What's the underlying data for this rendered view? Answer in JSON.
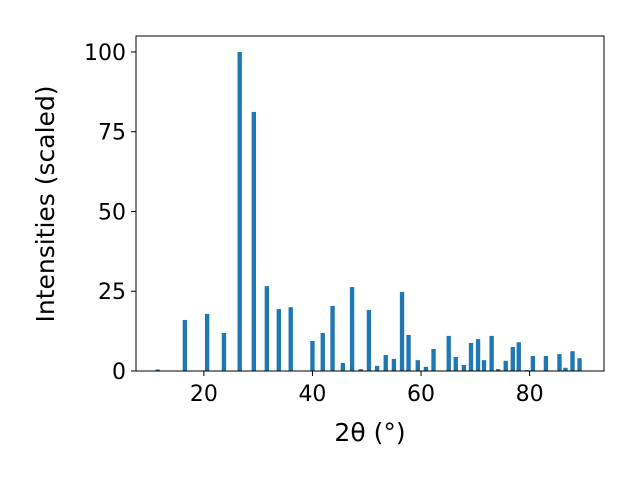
{
  "chart_data": {
    "type": "bar",
    "xlabel": "2θ (°)",
    "ylabel": "Intensities (scaled)",
    "color": "#1f77b4",
    "bar_width": 0.8,
    "x": [
      11.5,
      16.5,
      20.6,
      23.7,
      26.6,
      29.2,
      31.6,
      33.8,
      36.0,
      40.0,
      41.9,
      43.7,
      45.6,
      47.3,
      48.9,
      50.4,
      51.9,
      53.5,
      55.0,
      56.5,
      57.7,
      59.4,
      60.9,
      62.3,
      65.1,
      66.4,
      67.9,
      69.2,
      70.5,
      71.6,
      73.0,
      74.2,
      75.6,
      76.9,
      78.0,
      79.5,
      80.6,
      83.0,
      85.5,
      86.6,
      87.9,
      89.2
    ],
    "values": [
      0.5,
      16,
      17.9,
      11.9,
      100,
      81.2,
      26.6,
      19.4,
      20,
      9.4,
      11.9,
      20.4,
      2.5,
      26.3,
      0.6,
      19.1,
      1.6,
      5,
      3.8,
      24.8,
      11.3,
      3.4,
      1.3,
      6.9,
      11,
      4.4,
      1.9,
      8.8,
      10,
      3.4,
      11,
      0.6,
      3.2,
      7.5,
      9,
      0.3,
      4.7,
      4.7,
      5.3,
      1,
      6.2,
      4
    ],
    "xlim": [
      7.5,
      93.7
    ],
    "ylim": [
      0,
      105
    ],
    "xticks": [
      20,
      40,
      60,
      80
    ],
    "yticks": [
      0,
      25,
      50,
      75,
      100
    ]
  }
}
